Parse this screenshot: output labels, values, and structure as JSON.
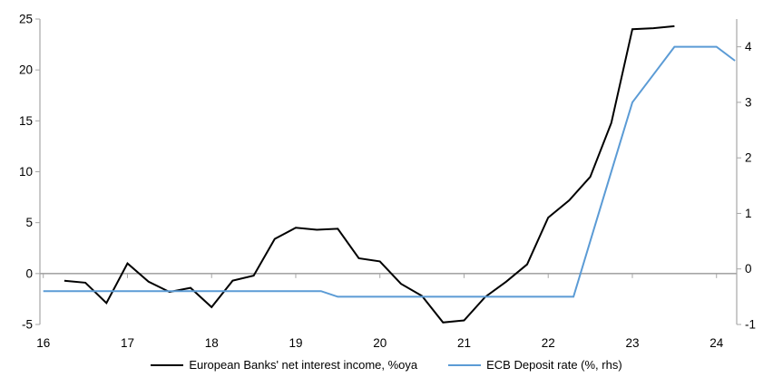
{
  "legend": [
    {
      "label": "European Banks' net interest income, %oya",
      "color": "#000000"
    },
    {
      "label": "ECB Deposit rate (%, rhs)",
      "color": "#5b9bd5"
    }
  ],
  "chart_data": {
    "type": "line",
    "title": "",
    "background": "#ffffff",
    "axis_color": "#a6a6a6",
    "grid": "off",
    "legend_position": "bottom-center",
    "x_axis": {
      "range": [
        15.96,
        24.24
      ],
      "ticks": [
        16,
        17,
        18,
        19,
        20,
        21,
        22,
        23,
        24
      ]
    },
    "left_axis": {
      "label": "",
      "range": [
        -5,
        25
      ],
      "ticks": [
        25,
        20,
        15,
        10,
        5,
        0,
        -5
      ]
    },
    "right_axis": {
      "label": "",
      "range": [
        -1,
        4.5
      ],
      "ticks": [
        4,
        3,
        2,
        1,
        0,
        -1
      ]
    },
    "zero_line": true,
    "series": [
      {
        "name": "European Banks' net interest income, %oya",
        "axis": "left",
        "color": "#000000",
        "points": [
          [
            16.25,
            -0.7
          ],
          [
            16.5,
            -0.9
          ],
          [
            16.75,
            -2.9
          ],
          [
            17.0,
            1.0
          ],
          [
            17.25,
            -0.8
          ],
          [
            17.5,
            -1.8
          ],
          [
            17.75,
            -1.4
          ],
          [
            18.0,
            -3.3
          ],
          [
            18.25,
            -0.7
          ],
          [
            18.5,
            -0.2
          ],
          [
            18.75,
            3.4
          ],
          [
            19.0,
            4.5
          ],
          [
            19.25,
            4.3
          ],
          [
            19.5,
            4.4
          ],
          [
            19.75,
            1.5
          ],
          [
            20.0,
            1.2
          ],
          [
            20.25,
            -1.0
          ],
          [
            20.5,
            -2.2
          ],
          [
            20.75,
            -4.8
          ],
          [
            21.0,
            -4.6
          ],
          [
            21.25,
            -2.3
          ],
          [
            21.5,
            -0.8
          ],
          [
            21.75,
            0.9
          ],
          [
            22.0,
            5.5
          ],
          [
            22.25,
            7.2
          ],
          [
            22.5,
            9.5
          ],
          [
            22.75,
            14.8
          ],
          [
            23.0,
            24.0
          ],
          [
            23.25,
            24.1
          ],
          [
            23.5,
            24.3
          ]
        ]
      },
      {
        "name": "ECB Deposit rate (%, rhs)",
        "axis": "right",
        "color": "#5b9bd5",
        "points": [
          [
            16.0,
            -0.4
          ],
          [
            19.3,
            -0.4
          ],
          [
            19.5,
            -0.5
          ],
          [
            22.3,
            -0.5
          ],
          [
            22.55,
            0.75
          ],
          [
            22.8,
            2.0
          ],
          [
            23.0,
            3.0
          ],
          [
            23.25,
            3.5
          ],
          [
            23.5,
            4.0
          ],
          [
            24.0,
            4.0
          ],
          [
            24.22,
            3.75
          ]
        ]
      }
    ]
  }
}
